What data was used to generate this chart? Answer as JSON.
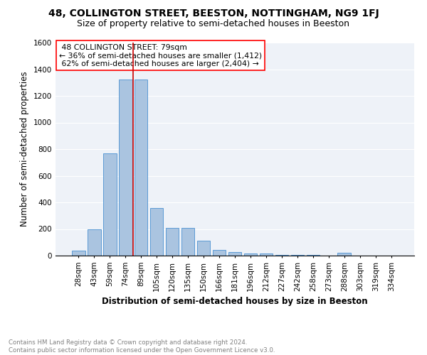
{
  "title": "48, COLLINGTON STREET, BEESTON, NOTTINGHAM, NG9 1FJ",
  "subtitle": "Size of property relative to semi-detached houses in Beeston",
  "xlabel": "Distribution of semi-detached houses by size in Beeston",
  "ylabel": "Number of semi-detached properties",
  "categories": [
    "28sqm",
    "43sqm",
    "59sqm",
    "74sqm",
    "89sqm",
    "105sqm",
    "120sqm",
    "135sqm",
    "150sqm",
    "166sqm",
    "181sqm",
    "196sqm",
    "212sqm",
    "227sqm",
    "242sqm",
    "258sqm",
    "273sqm",
    "288sqm",
    "303sqm",
    "319sqm",
    "334sqm"
  ],
  "values": [
    40,
    200,
    770,
    1325,
    1325,
    360,
    210,
    210,
    110,
    45,
    25,
    15,
    15,
    5,
    5,
    5,
    0,
    20,
    0,
    0,
    0
  ],
  "bar_color": "#aac4e0",
  "bar_edge_color": "#5b9bd5",
  "property_line_label": "48 COLLINGTON STREET: 79sqm",
  "smaller_pct": "36%",
  "smaller_count": "1,412",
  "larger_pct": "62%",
  "larger_count": "2,404",
  "vline_color": "#cc0000",
  "ylim": [
    0,
    1600
  ],
  "yticks": [
    0,
    200,
    400,
    600,
    800,
    1000,
    1200,
    1400,
    1600
  ],
  "bg_color": "#eef2f8",
  "footer_line1": "Contains HM Land Registry data © Crown copyright and database right 2024.",
  "footer_line2": "Contains public sector information licensed under the Open Government Licence v3.0.",
  "title_fontsize": 10,
  "subtitle_fontsize": 9,
  "axis_label_fontsize": 8.5,
  "tick_fontsize": 7.5
}
